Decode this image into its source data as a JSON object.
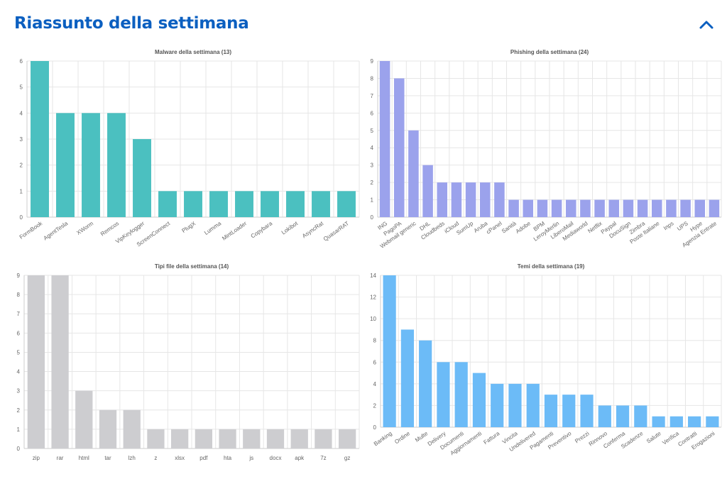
{
  "header": {
    "title": "Riassunto della settimana",
    "collapse_icon": "chevron-up-icon",
    "accent_color": "#0b5fc0"
  },
  "chart_data": [
    {
      "type": "bar",
      "title": "Malware della settimana (13)",
      "color": "#4bc0c0",
      "categories": [
        "FormBook",
        "AgentTesla",
        "XWorm",
        "Remcos",
        "VipKeylogger",
        "ScreenConnect",
        "PlugX",
        "Lumma",
        "MintLoader",
        "Copybara",
        "Lokibot",
        "AsyncRat",
        "QuasarRAT"
      ],
      "values": [
        6,
        4,
        4,
        4,
        3,
        1,
        1,
        1,
        1,
        1,
        1,
        1,
        1
      ],
      "ylim": [
        0,
        6
      ],
      "yticks": [
        0,
        1,
        2,
        3,
        4,
        5,
        6
      ],
      "rotate_labels": true,
      "grid": true
    },
    {
      "type": "bar",
      "title": "Phishing della settimana (24)",
      "color": "#9ba2ec",
      "categories": [
        "ING",
        "PagoPA",
        "Webmail generic",
        "DHL",
        "Cloudbeds",
        "iCloud",
        "SumUp",
        "Aruba",
        "cPanel",
        "Sanità",
        "Adobe",
        "BPM",
        "LeroyMerlin",
        "LiberoMail",
        "Mediaworld",
        "Netflix",
        "Paypal",
        "DocuSign",
        "Zimbra",
        "Poste Italiane",
        "Inps",
        "UPS",
        "Hype",
        "Agenzia Entrate"
      ],
      "values": [
        9,
        8,
        5,
        3,
        2,
        2,
        2,
        2,
        2,
        1,
        1,
        1,
        1,
        1,
        1,
        1,
        1,
        1,
        1,
        1,
        1,
        1,
        1,
        1
      ],
      "ylim": [
        0,
        9
      ],
      "yticks": [
        0,
        1,
        2,
        3,
        4,
        5,
        6,
        7,
        8,
        9
      ],
      "rotate_labels": true,
      "grid": true
    },
    {
      "type": "bar",
      "title": "Tipi file della settimana (14)",
      "color": "#cdcdd0",
      "categories": [
        "zip",
        "rar",
        "html",
        "tar",
        "lzh",
        "z",
        "xlsx",
        "pdf",
        "hta",
        "js",
        "docx",
        "apk",
        "7z",
        "gz"
      ],
      "values": [
        9,
        9,
        3,
        2,
        2,
        1,
        1,
        1,
        1,
        1,
        1,
        1,
        1,
        1
      ],
      "ylim": [
        0,
        9
      ],
      "yticks": [
        0,
        1,
        2,
        3,
        4,
        5,
        6,
        7,
        8,
        9
      ],
      "rotate_labels": false,
      "grid": true
    },
    {
      "type": "bar",
      "title": "Temi della settimana (19)",
      "color": "#6cbbf7",
      "categories": [
        "Banking",
        "Ordine",
        "Multe",
        "Delivery",
        "Documenti",
        "Aggiornamenti",
        "Fattura",
        "Vincita",
        "Undelivered",
        "Pagamenti",
        "Preventivo",
        "Prezzi",
        "Rinnovo",
        "Conferma",
        "Scadenze",
        "Salute",
        "Verifica",
        "Contratti",
        "Erogazioni"
      ],
      "values": [
        14,
        9,
        8,
        6,
        6,
        5,
        4,
        4,
        4,
        3,
        3,
        3,
        2,
        2,
        2,
        1,
        1,
        1,
        1
      ],
      "ylim": [
        0,
        14
      ],
      "yticks": [
        0,
        2,
        4,
        6,
        8,
        10,
        12,
        14
      ],
      "rotate_labels": true,
      "grid": true
    }
  ]
}
